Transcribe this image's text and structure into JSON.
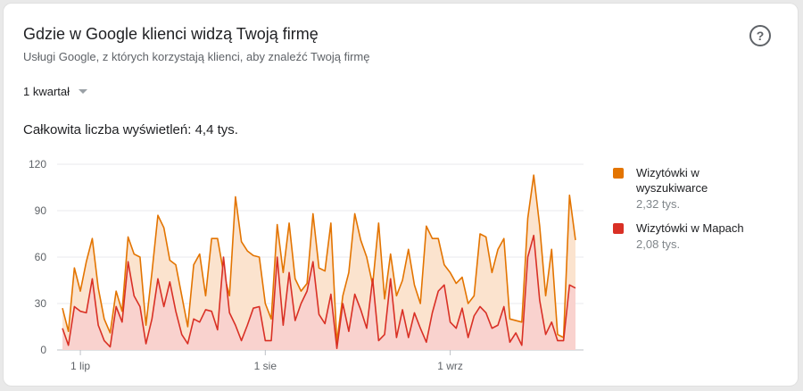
{
  "header": {
    "title": "Gdzie w Google klienci widzą Twoją firmę",
    "subtitle": "Usługi Google, z których korzystają klienci, aby znaleźć Twoją firmę",
    "help_glyph": "?"
  },
  "period_selector": {
    "value": "1 kwartał"
  },
  "summary": {
    "total_label": "Całkowita liczba wyświetleń: 4,4 tys."
  },
  "legend": {
    "items": [
      {
        "name": "Wizytówki w wyszukiwarce",
        "value": "2,32 tys.",
        "color": "#e37400"
      },
      {
        "name": "Wizytówki w Mapach",
        "value": "2,08 tys.",
        "color": "#d93025"
      }
    ]
  },
  "chart_data": {
    "type": "area",
    "stacked": false,
    "ylim": [
      0,
      120
    ],
    "y_ticks": [
      "0",
      "30",
      "60",
      "90",
      "120"
    ],
    "x_tick_labels": [
      {
        "label": "1 lip",
        "index": 3
      },
      {
        "label": "1 sie",
        "index": 34
      },
      {
        "label": "1 wrz",
        "index": 65
      }
    ],
    "grid": true,
    "series": [
      {
        "name": "Wizytówki w wyszukiwarce",
        "color": "#e37400",
        "fill": "#fbe3ce",
        "values": [
          27,
          12,
          53,
          38,
          57,
          72,
          40,
          20,
          11,
          38,
          25,
          73,
          62,
          60,
          16,
          50,
          87,
          79,
          58,
          55,
          35,
          15,
          55,
          62,
          35,
          72,
          72,
          50,
          35,
          99,
          70,
          64,
          61,
          60,
          30,
          20,
          81,
          50,
          82,
          46,
          38,
          43,
          88,
          53,
          51,
          82,
          5,
          35,
          50,
          88,
          71,
          60,
          42,
          82,
          33,
          62,
          35,
          45,
          65,
          42,
          30,
          80,
          72,
          72,
          55,
          50,
          43,
          47,
          30,
          35,
          75,
          73,
          50,
          65,
          72,
          20,
          19,
          18,
          85,
          113,
          80,
          35,
          65,
          10,
          8,
          100,
          71
        ]
      },
      {
        "name": "Wizytówki w Mapach",
        "color": "#d93025",
        "fill": "#f8cfce",
        "values": [
          14,
          3,
          28,
          25,
          24,
          46,
          16,
          6,
          2,
          28,
          18,
          57,
          35,
          28,
          4,
          20,
          46,
          28,
          44,
          25,
          10,
          4,
          20,
          18,
          26,
          25,
          13,
          60,
          24,
          16,
          6,
          16,
          27,
          28,
          6,
          6,
          60,
          16,
          50,
          19,
          30,
          38,
          57,
          23,
          17,
          36,
          1,
          30,
          12,
          36,
          26,
          14,
          46,
          6,
          10,
          46,
          8,
          26,
          8,
          24,
          14,
          5,
          24,
          38,
          42,
          18,
          14,
          27,
          8,
          22,
          28,
          24,
          14,
          16,
          28,
          5,
          11,
          3,
          60,
          74,
          32,
          10,
          18,
          6,
          6,
          42,
          40
        ]
      }
    ]
  }
}
